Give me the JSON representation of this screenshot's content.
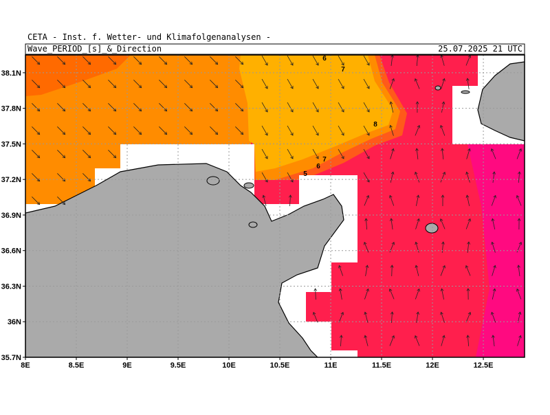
{
  "header": {
    "source": "CETA - Inst. f. Wetter- und Klimafolgenanalysen -",
    "field": "Wave_PERIOD_[s]_&_Direction",
    "valid_time": "25.07.2025 21 UTC"
  },
  "map": {
    "xlim": [
      8,
      12.905
    ],
    "ylim": [
      35.7,
      38.25
    ],
    "xticks": [
      {
        "value": 8,
        "label": "8E"
      },
      {
        "value": 8.5,
        "label": "8.5E"
      },
      {
        "value": 9,
        "label": "9E"
      },
      {
        "value": 9.5,
        "label": "9.5E"
      },
      {
        "value": 10,
        "label": "10E"
      },
      {
        "value": 10.5,
        "label": "10.5E"
      },
      {
        "value": 11,
        "label": "11E"
      },
      {
        "value": 11.5,
        "label": "11.5E"
      },
      {
        "value": 12,
        "label": "12E"
      },
      {
        "value": 12.5,
        "label": "12.5E"
      }
    ],
    "yticks": [
      {
        "value": 38.1,
        "label": "38.1N"
      },
      {
        "value": 37.8,
        "label": "37.8N"
      },
      {
        "value": 37.5,
        "label": "37.5N"
      },
      {
        "value": 37.2,
        "label": "37.2N"
      },
      {
        "value": 36.9,
        "label": "36.9N"
      },
      {
        "value": 36.6,
        "label": "36.6N"
      },
      {
        "value": 36.3,
        "label": "36.3N"
      },
      {
        "value": 36,
        "label": "36N"
      },
      {
        "value": 35.7,
        "label": "35.7N"
      }
    ],
    "contour_labels": [
      6,
      7,
      8,
      7,
      6,
      5
    ]
  }
}
